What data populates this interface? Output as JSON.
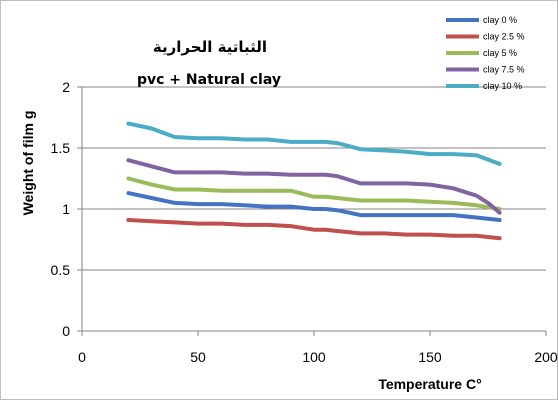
{
  "chart_data": {
    "type": "line",
    "title_line1": "الثباتية الحرارية",
    "title_line2": "pvc +  Natural  clay",
    "xlabel": "Temperature C°",
    "ylabel": "Weight of film g",
    "xlim": [
      0,
      200
    ],
    "ylim": [
      0,
      2
    ],
    "x_ticks": [
      "0",
      "50",
      "100",
      "150",
      "200"
    ],
    "y_ticks": [
      "0",
      "0.5",
      "1",
      "1.5",
      "2"
    ],
    "grid": "horizontal",
    "legend_position": "top-right",
    "series": [
      {
        "name": "clay 0 %",
        "color": "#4473c4",
        "x": [
          20,
          30,
          40,
          50,
          60,
          70,
          80,
          90,
          100,
          105,
          110,
          120,
          130,
          140,
          150,
          160,
          170,
          180
        ],
        "y": [
          1.13,
          1.09,
          1.05,
          1.04,
          1.04,
          1.03,
          1.02,
          1.02,
          1.0,
          1.0,
          0.99,
          0.95,
          0.95,
          0.95,
          0.95,
          0.95,
          0.93,
          0.91
        ]
      },
      {
        "name": "clay 2.5 %",
        "color": "#c0504d",
        "x": [
          20,
          30,
          40,
          50,
          60,
          70,
          80,
          90,
          100,
          105,
          110,
          120,
          130,
          140,
          150,
          160,
          170,
          180
        ],
        "y": [
          0.91,
          0.9,
          0.89,
          0.88,
          0.88,
          0.87,
          0.87,
          0.86,
          0.83,
          0.83,
          0.82,
          0.8,
          0.8,
          0.79,
          0.79,
          0.78,
          0.78,
          0.76
        ]
      },
      {
        "name": "clay 5 %",
        "color": "#9bbb59",
        "x": [
          20,
          30,
          40,
          50,
          60,
          70,
          80,
          90,
          100,
          105,
          110,
          120,
          130,
          140,
          150,
          160,
          170,
          180
        ],
        "y": [
          1.25,
          1.2,
          1.16,
          1.16,
          1.15,
          1.15,
          1.15,
          1.15,
          1.1,
          1.1,
          1.09,
          1.07,
          1.07,
          1.07,
          1.06,
          1.05,
          1.03,
          1.0
        ]
      },
      {
        "name": "clay 7.5 %",
        "color": "#8064a2",
        "x": [
          20,
          30,
          40,
          50,
          60,
          70,
          80,
          90,
          100,
          105,
          110,
          120,
          130,
          140,
          150,
          160,
          170,
          175,
          180
        ],
        "y": [
          1.4,
          1.35,
          1.3,
          1.3,
          1.3,
          1.29,
          1.29,
          1.28,
          1.28,
          1.28,
          1.27,
          1.21,
          1.21,
          1.21,
          1.2,
          1.17,
          1.11,
          1.05,
          0.97
        ]
      },
      {
        "name": "clay 10 %",
        "color": "#4bacc6",
        "x": [
          20,
          30,
          40,
          50,
          60,
          70,
          80,
          90,
          100,
          105,
          110,
          120,
          130,
          140,
          150,
          160,
          170,
          180
        ],
        "y": [
          1.7,
          1.66,
          1.59,
          1.58,
          1.58,
          1.57,
          1.57,
          1.55,
          1.55,
          1.55,
          1.54,
          1.49,
          1.48,
          1.47,
          1.45,
          1.45,
          1.44,
          1.37
        ]
      }
    ]
  }
}
